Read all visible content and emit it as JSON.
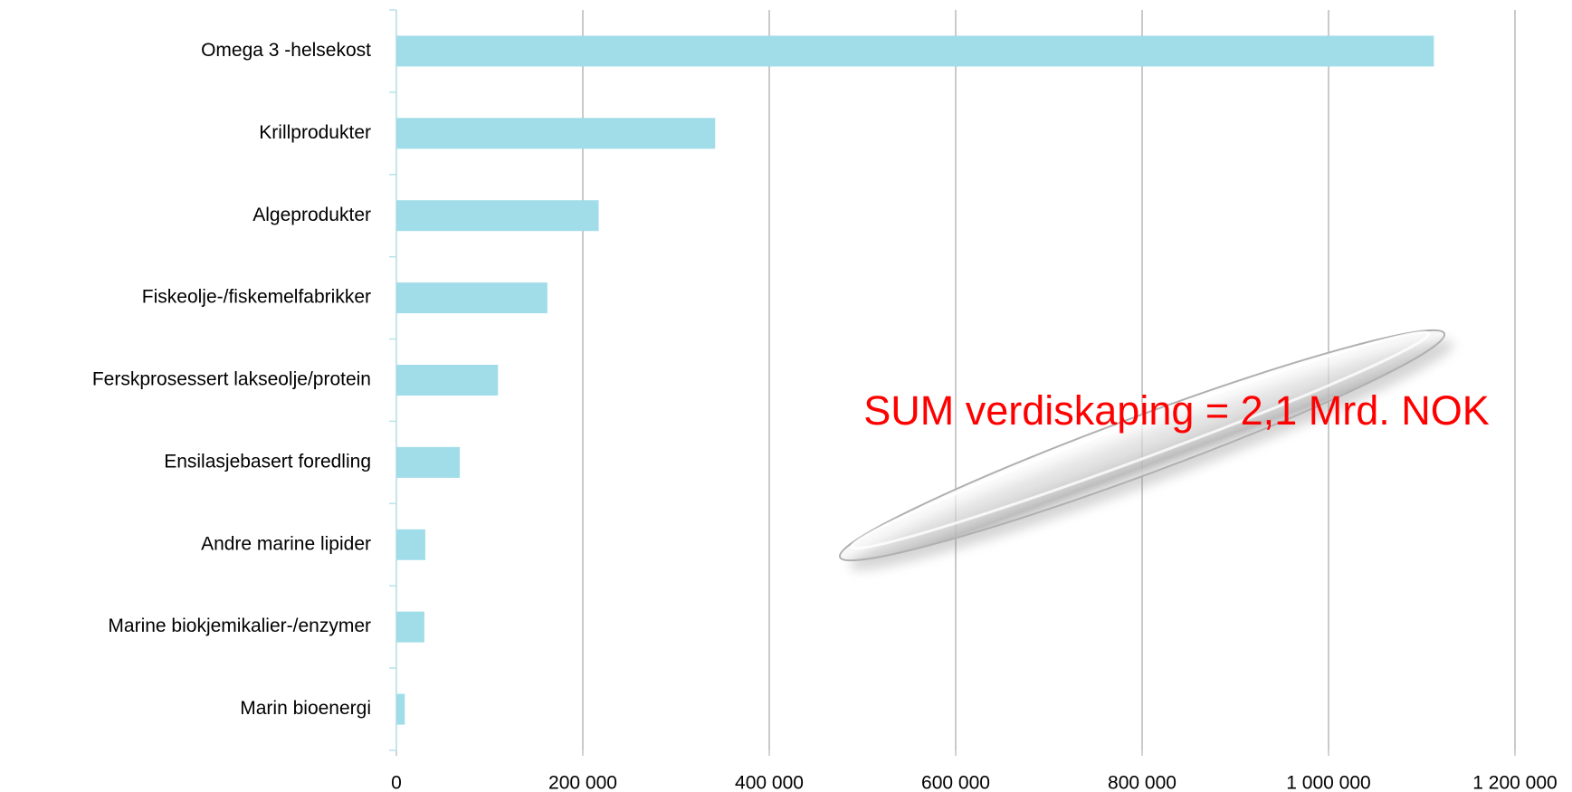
{
  "chart_data": {
    "type": "hbar",
    "categories": [
      "Omega 3 -helsekost",
      "Krillprodukter",
      "Algeprodukter",
      "Fiskeolje-/fiskemelfabrikker",
      "Ferskprosessert lakseolje/protein",
      "Ensilasjebasert foredling",
      "Andre marine lipider",
      "Marine biokjemikalier-/enzymer",
      "Marin bioenergi"
    ],
    "values": [
      1113000,
      342000,
      217000,
      162000,
      109000,
      68000,
      31000,
      30000,
      9000
    ],
    "color": "#a0dde8",
    "xlim": [
      0,
      1200000
    ],
    "xticks": [
      0,
      {
        "value": 200000,
        "label": "200 000"
      },
      {
        "value": 400000,
        "label": "400 000"
      },
      {
        "value": 600000,
        "label": "600 000"
      },
      {
        "value": 800000,
        "label": "800 000"
      },
      {
        "value": 1000000,
        "label": "1 000 000"
      },
      {
        "value": 1200000,
        "label": "1 200 000"
      }
    ],
    "grid": true,
    "annotation": "SUM verdiskaping = 2,1 Mrd. NOK"
  }
}
